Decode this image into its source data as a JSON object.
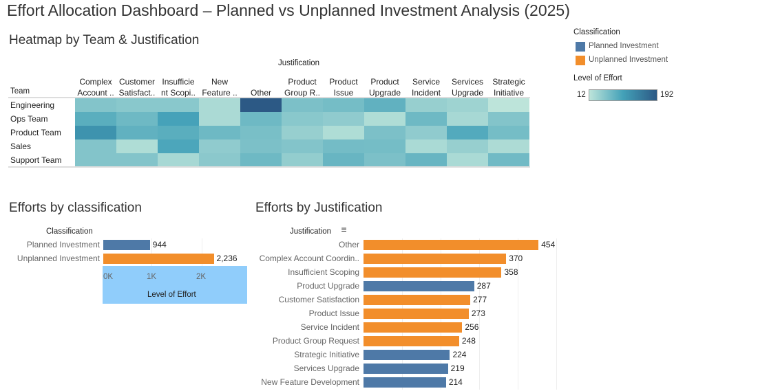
{
  "title": "Effort Allocation Dashboard – Planned vs Unplanned Investment Analysis (2025)",
  "colors": {
    "planned": "#4e79a7",
    "unplanned": "#f28e2b",
    "axis_highlight": "#90cdfb"
  },
  "legend": {
    "classification_title": "Classification",
    "items": [
      {
        "label": "Planned Investment",
        "color": "#4e79a7"
      },
      {
        "label": "Unplanned Investment",
        "color": "#f28e2b"
      }
    ],
    "effort_title": "Level of Effort",
    "min": "12",
    "max": "192"
  },
  "chart_data": [
    {
      "type": "heatmap",
      "title": "Heatmap by Team & Justification",
      "xlabel": "Justification",
      "ylabel": "Team",
      "columns": [
        [
          "Complex",
          "Account .."
        ],
        [
          "Customer",
          "Satisfact.."
        ],
        [
          "Insufficie",
          "nt Scopi.."
        ],
        [
          "New",
          "Feature .."
        ],
        [
          "",
          "Other"
        ],
        [
          "Product",
          "Group R.."
        ],
        [
          "Product",
          "Issue"
        ],
        [
          "Product",
          "Upgrade"
        ],
        [
          "Service",
          "Incident"
        ],
        [
          "Services",
          "Upgrade"
        ],
        [
          "Strategic",
          "Initiative"
        ]
      ],
      "rows": [
        "Engineering",
        "Ops Team",
        "Product Team",
        "Sales",
        "Support Team"
      ],
      "values": [
        [
          55,
          50,
          50,
          25,
          192,
          60,
          65,
          80,
          40,
          35,
          12
        ],
        [
          85,
          70,
          100,
          25,
          70,
          50,
          45,
          22,
          70,
          28,
          55
        ],
        [
          120,
          80,
          85,
          70,
          62,
          40,
          22,
          60,
          45,
          90,
          65
        ],
        [
          55,
          22,
          95,
          45,
          60,
          55,
          66,
          65,
          26,
          40,
          24
        ],
        [
          55,
          55,
          28,
          49,
          70,
          43,
          75,
          60,
          75,
          26,
          68
        ]
      ],
      "color_range": [
        12,
        192
      ]
    },
    {
      "type": "bar",
      "title": "Efforts by classification",
      "ylabel": "Classification",
      "xlabel": "Level of Effort",
      "categories": [
        "Planned Investment",
        "Unplanned Investment"
      ],
      "values": [
        944,
        2236
      ],
      "labels": [
        "944",
        "2,236"
      ],
      "ticks": [
        "0K",
        "1K",
        "2K"
      ],
      "xlim": [
        0,
        2800
      ]
    },
    {
      "type": "bar",
      "title": "Efforts by Justification",
      "ylabel": "Justification",
      "categories": [
        "Other",
        "Complex Account Coordin..",
        "Insufficient Scoping",
        "Product Upgrade",
        "Customer Satisfaction",
        "Product Issue",
        "Service Incident",
        "Product Group Request",
        "Strategic Initiative",
        "Services Upgrade",
        "New Feature Development"
      ],
      "values": [
        454,
        370,
        358,
        287,
        277,
        273,
        256,
        248,
        224,
        219,
        214
      ],
      "classification": [
        "Unplanned Investment",
        "Unplanned Investment",
        "Unplanned Investment",
        "Planned Investment",
        "Unplanned Investment",
        "Unplanned Investment",
        "Unplanned Investment",
        "Unplanned Investment",
        "Planned Investment",
        "Planned Investment",
        "Planned Investment"
      ],
      "xlim": [
        0,
        500
      ]
    }
  ]
}
